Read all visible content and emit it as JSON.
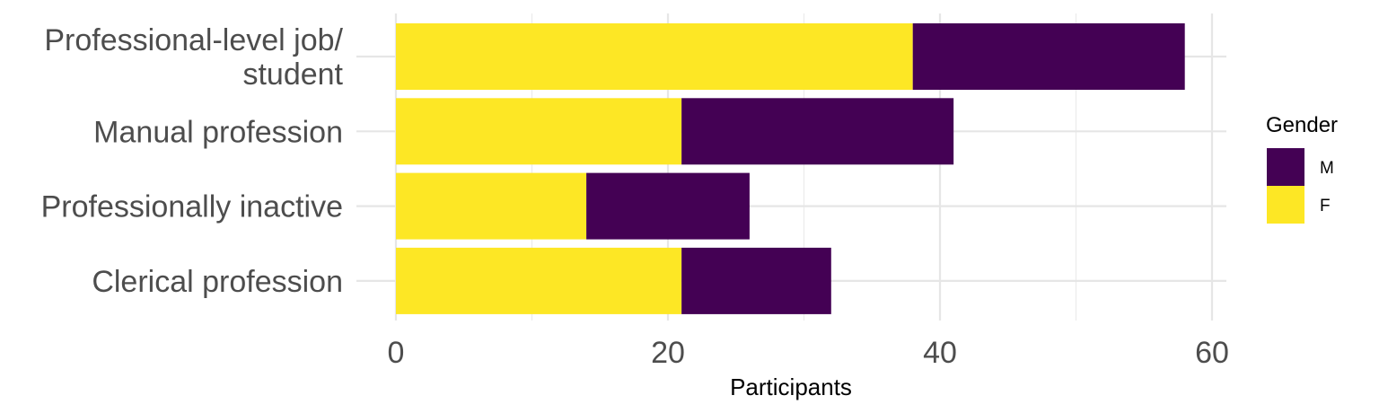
{
  "chart_data": {
    "type": "bar",
    "orientation": "horizontal",
    "stacked": true,
    "categories": [
      [
        "Professional-level job/",
        "student"
      ],
      [
        "Manual profession"
      ],
      [
        "Professionally inactive"
      ],
      [
        "Clerical profession"
      ]
    ],
    "series": [
      {
        "name": "F",
        "color": "#FDE725",
        "values": [
          38,
          21,
          14,
          21
        ]
      },
      {
        "name": "M",
        "color": "#440154",
        "values": [
          20,
          20,
          12,
          11
        ]
      }
    ],
    "xlabel": "Participants",
    "ylabel": "",
    "xlim": [
      0,
      60
    ],
    "xticks": [
      0,
      20,
      40,
      60
    ],
    "grid": true,
    "legend": {
      "title": "Gender",
      "position": "right",
      "order": [
        "M",
        "F"
      ]
    }
  }
}
